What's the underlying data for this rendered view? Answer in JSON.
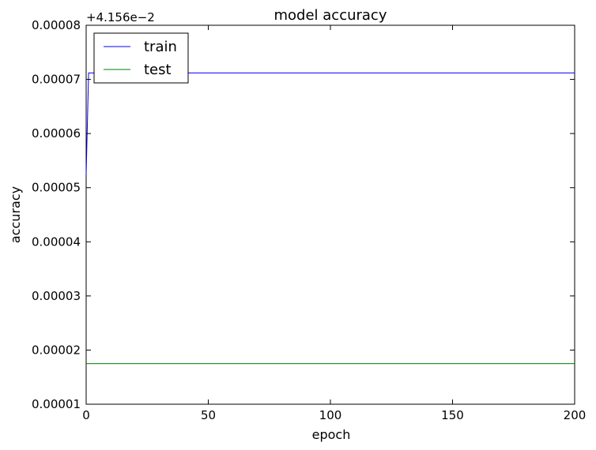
{
  "chart_data": {
    "type": "line",
    "title": "model accuracy",
    "xlabel": "epoch",
    "ylabel": "accuracy",
    "offset_label": "+4.156e−2",
    "xlim": [
      0,
      200
    ],
    "ylim": [
      1e-05,
      8e-05
    ],
    "x_ticks": [
      0,
      50,
      100,
      150,
      200
    ],
    "x_tick_labels": [
      "0",
      "50",
      "100",
      "150",
      "200"
    ],
    "y_ticks": [
      1e-05,
      2e-05,
      3e-05,
      4e-05,
      5e-05,
      6e-05,
      7e-05,
      8e-05
    ],
    "y_tick_labels": [
      "0.00001",
      "0.00002",
      "0.00003",
      "0.00004",
      "0.00005",
      "0.00006",
      "0.00007",
      "0.00008"
    ],
    "grid": false,
    "legend_position": "top-left",
    "series": [
      {
        "name": "train",
        "color": "#0000ff",
        "x": [
          0,
          1,
          200
        ],
        "y": [
          5.25e-05,
          7.12e-05,
          7.12e-05
        ]
      },
      {
        "name": "test",
        "color": "#008000",
        "x": [
          0,
          200
        ],
        "y": [
          1.75e-05,
          1.75e-05
        ]
      }
    ]
  }
}
